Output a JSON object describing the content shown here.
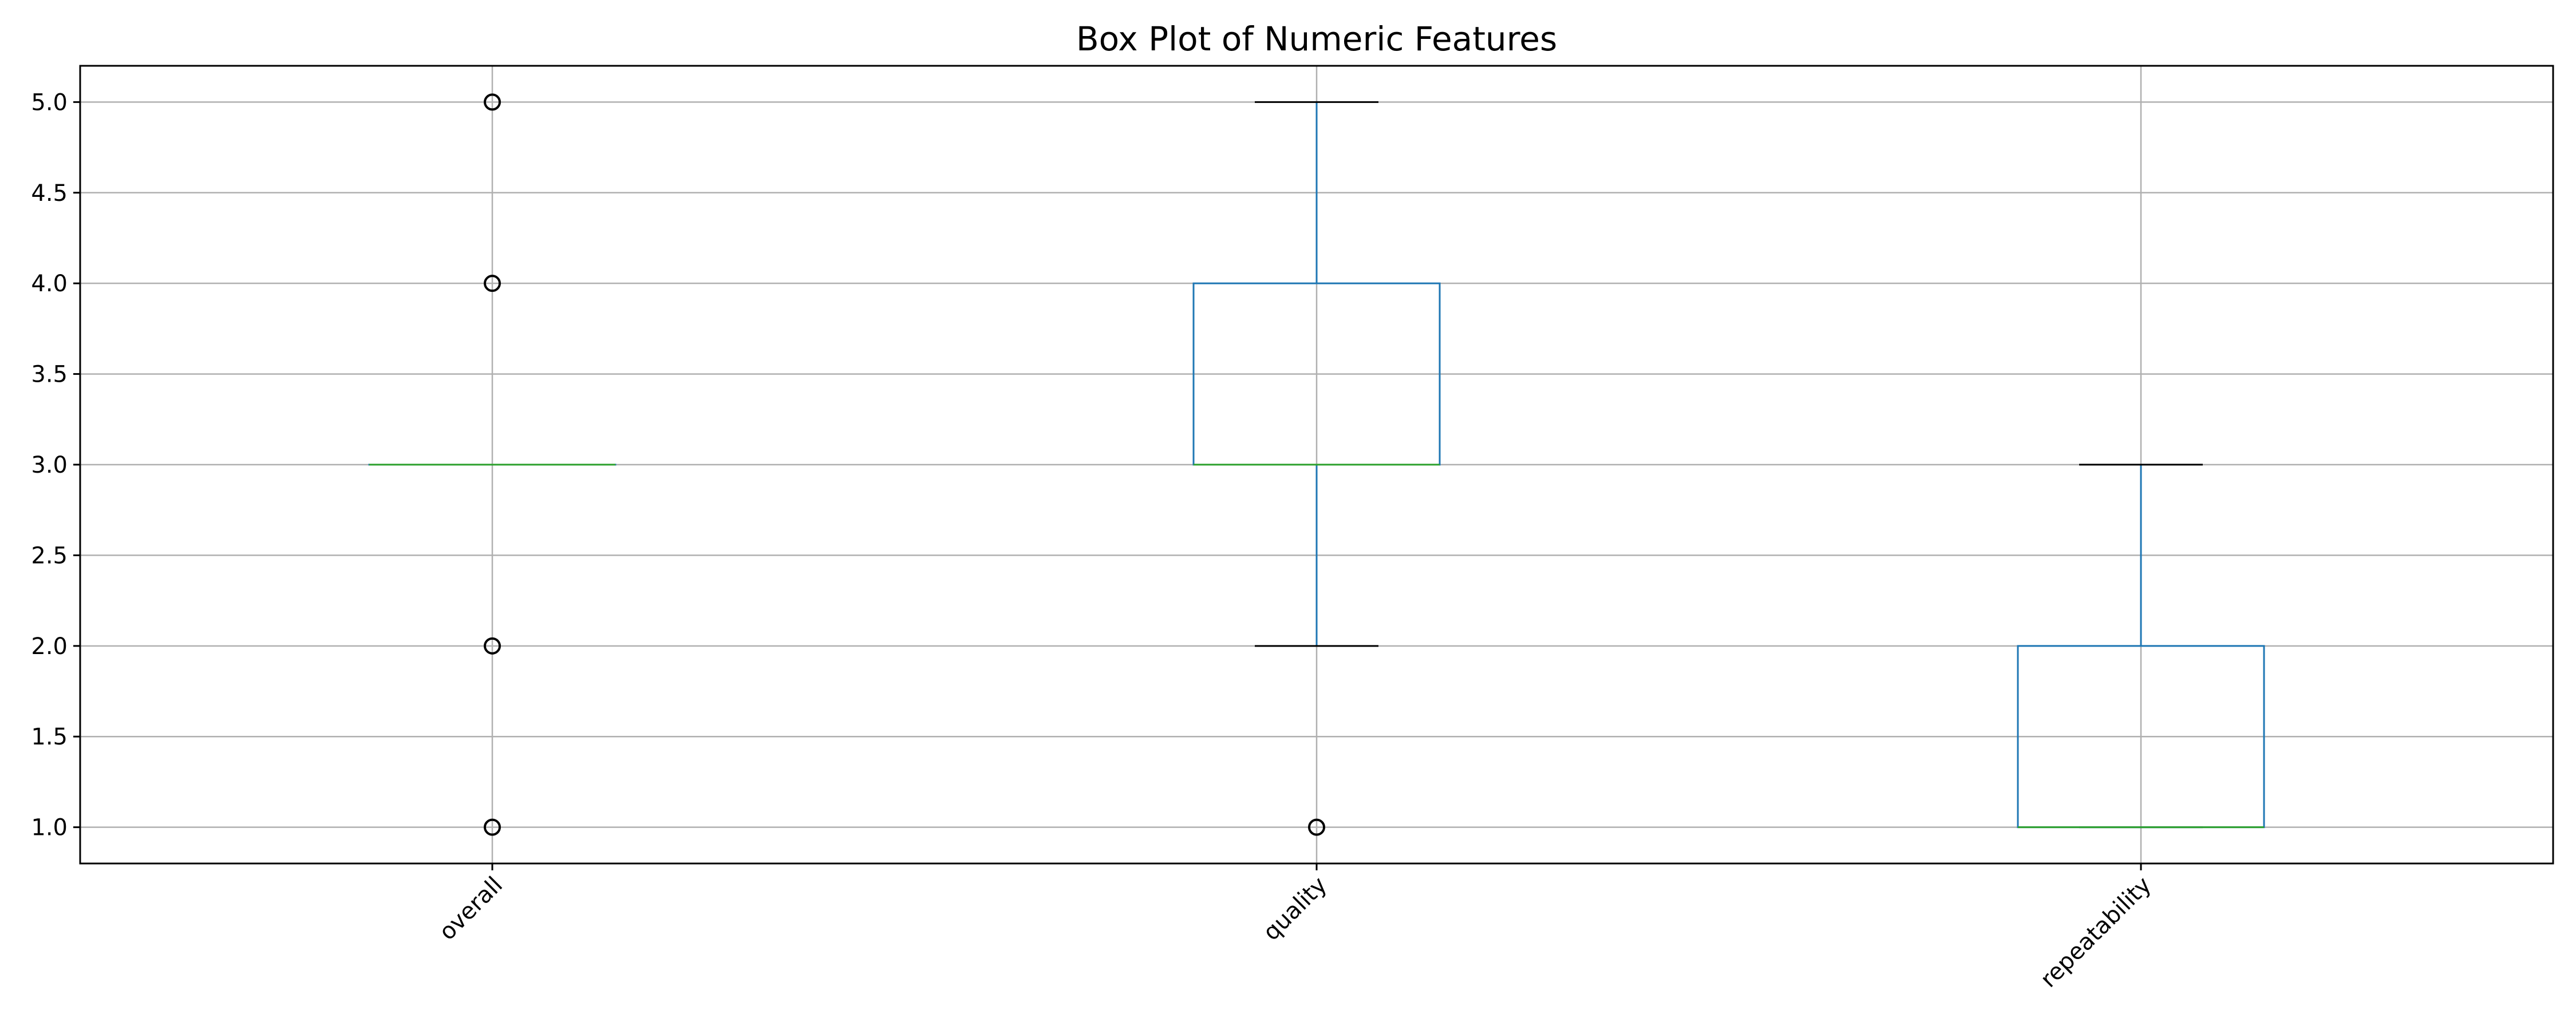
{
  "chart_data": {
    "type": "box",
    "title": "Box Plot of Numeric Features",
    "xlabel": "",
    "ylabel": "",
    "ylim": [
      0.8,
      5.2
    ],
    "yticks": [
      "1.0",
      "1.5",
      "2.0",
      "2.5",
      "3.0",
      "3.5",
      "4.0",
      "4.5",
      "5.0"
    ],
    "grid": true,
    "categories": [
      "overall",
      "quality",
      "repeatability"
    ],
    "boxes": [
      {
        "name": "overall",
        "whisker_low": 3.0,
        "q1": 3.0,
        "median": 3.0,
        "q3": 3.0,
        "whisker_high": 3.0,
        "outliers": [
          1.0,
          2.0,
          4.0,
          5.0
        ]
      },
      {
        "name": "quality",
        "whisker_low": 2.0,
        "q1": 3.0,
        "median": 3.0,
        "q3": 4.0,
        "whisker_high": 5.0,
        "outliers": [
          1.0
        ]
      },
      {
        "name": "repeatability",
        "whisker_low": 1.0,
        "q1": 1.0,
        "median": 1.0,
        "q3": 2.0,
        "whisker_high": 3.0,
        "outliers": []
      }
    ],
    "colors": {
      "box": "#1f77b4",
      "median": "#2ca02c",
      "cap": "#000000",
      "grid": "#b0b0b0",
      "axes": "#000000",
      "flier": "#000000"
    }
  }
}
